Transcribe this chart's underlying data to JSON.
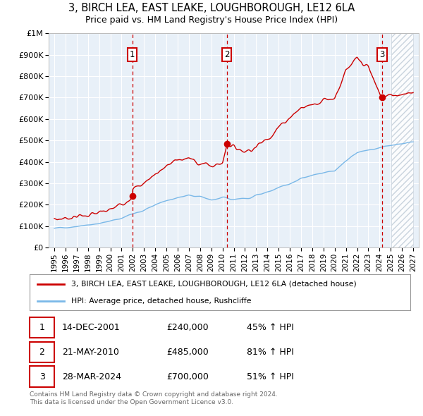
{
  "title": "3, BIRCH LEA, EAST LEAKE, LOUGHBOROUGH, LE12 6LA",
  "subtitle": "Price paid vs. HM Land Registry's House Price Index (HPI)",
  "background_color": "#ffffff",
  "plot_bg_color": "#e8f0f8",
  "grid_color": "#ffffff",
  "hpi_line_color": "#7ab8e8",
  "property_line_color": "#cc0000",
  "sale_line_color": "#cc0000",
  "sale_box_color": "#cc0000",
  "sale1_year": 2001.95,
  "sale1_price": 240000,
  "sale1_label": "14-DEC-2001",
  "sale1_pct": "45% ↑ HPI",
  "sale2_year": 2010.38,
  "sale2_price": 485000,
  "sale2_label": "21-MAY-2010",
  "sale2_pct": "81% ↑ HPI",
  "sale3_year": 2024.23,
  "sale3_price": 700000,
  "sale3_label": "28-MAR-2024",
  "sale3_pct": "51% ↑ HPI",
  "xmin": 1994.5,
  "xmax": 2027.5,
  "ymin": 0,
  "ymax": 1000000,
  "ylabel_vals": [
    0,
    100000,
    200000,
    300000,
    400000,
    500000,
    600000,
    700000,
    800000,
    900000,
    1000000
  ],
  "xticks": [
    1995,
    1996,
    1997,
    1998,
    1999,
    2000,
    2001,
    2002,
    2003,
    2004,
    2005,
    2006,
    2007,
    2008,
    2009,
    2010,
    2011,
    2012,
    2013,
    2014,
    2015,
    2016,
    2017,
    2018,
    2019,
    2020,
    2021,
    2022,
    2023,
    2024,
    2025,
    2026,
    2027
  ],
  "legend_line1": "3, BIRCH LEA, EAST LEAKE, LOUGHBOROUGH, LE12 6LA (detached house)",
  "legend_line2": "HPI: Average price, detached house, Rushcliffe",
  "footer1": "Contains HM Land Registry data © Crown copyright and database right 2024.",
  "footer2": "This data is licensed under the Open Government Licence v3.0.",
  "future_start": 2025.0
}
